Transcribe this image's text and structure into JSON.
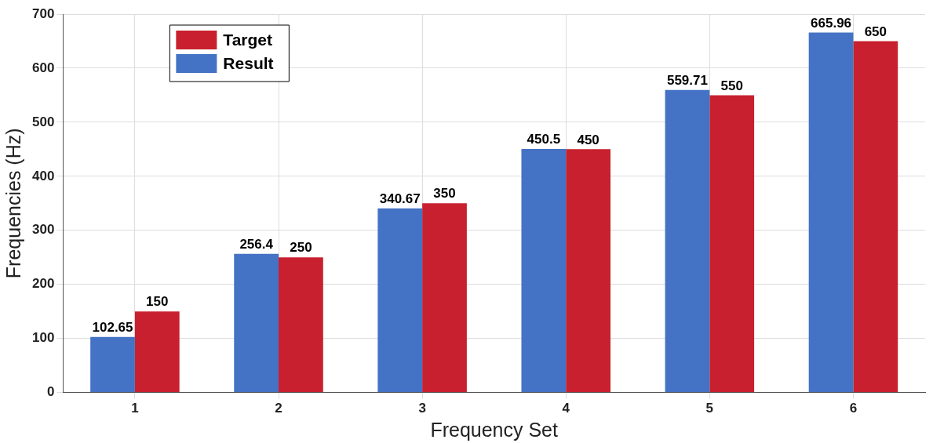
{
  "chart_data": {
    "type": "bar",
    "xlabel": "Frequency Set",
    "ylabel": "Frequencies (Hz)",
    "categories": [
      "1",
      "2",
      "3",
      "4",
      "5",
      "6"
    ],
    "series": [
      {
        "name": "Result",
        "color": "#4472c4",
        "values": [
          102.65,
          256.4,
          340.67,
          450.5,
          559.71,
          665.96
        ]
      },
      {
        "name": "Target",
        "color": "#c8202e",
        "values": [
          150,
          250,
          350,
          450,
          550,
          650
        ]
      }
    ],
    "ylim": [
      0,
      700
    ],
    "yticks": [
      0,
      100,
      200,
      300,
      400,
      500,
      600,
      700
    ],
    "grid": true,
    "legend": "top left",
    "data_labels": true
  }
}
